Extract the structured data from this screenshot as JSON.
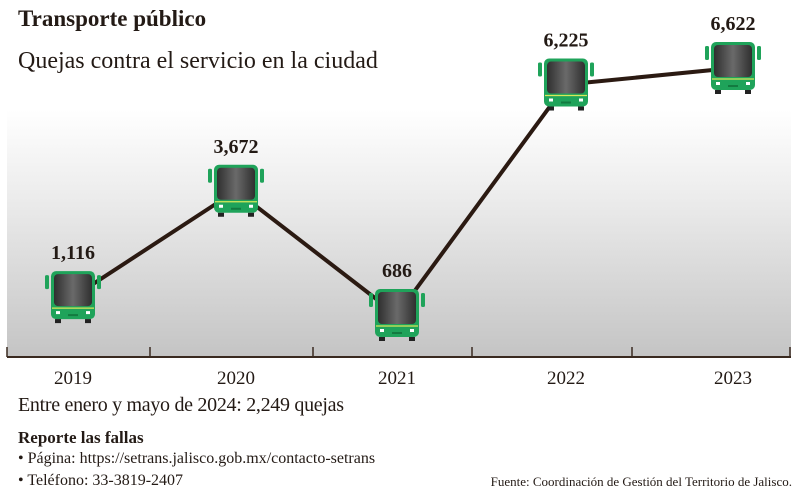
{
  "header": {
    "title": "Transporte público",
    "subtitle": "Quejas contra el servicio en la ciudad"
  },
  "chart_data": {
    "type": "line",
    "title": "Transporte público",
    "subtitle": "Quejas contra el servicio en la ciudad",
    "categories": [
      "2019",
      "2020",
      "2021",
      "2022",
      "2023"
    ],
    "values": [
      1116,
      3672,
      686,
      6225,
      6622
    ],
    "labels": [
      "1,116",
      "3,672",
      "686",
      "6,225",
      "6,622"
    ],
    "marker": "bus-icon",
    "xlabel": "",
    "ylabel": "",
    "grid": false,
    "colors": {
      "line": "#2b1a12",
      "bus_body": "#1fa35a",
      "bus_window": "#4a4a4a"
    }
  },
  "footer": {
    "note": "Entre enero y mayo de 2024: 2,249 quejas",
    "report_title": "Reporte las fallas",
    "items": [
      "• Página: https://setrans.jalisco.gob.mx/contacto-setrans",
      "• Teléfono: 33-3819-2407"
    ],
    "source": "Fuente: Coordinación de Gestión del Territorio de Jalisco."
  }
}
